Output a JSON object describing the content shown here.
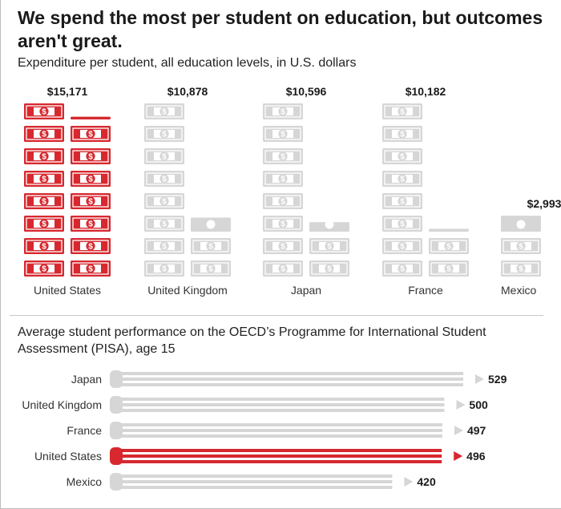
{
  "title": "We spend the most per student on education, but outcomes aren't great.",
  "chart_data": [
    {
      "type": "bar",
      "title": "Expenditure per student, all education levels, in U.S. dollars",
      "categories": [
        "United States",
        "United Kingdom",
        "Japan",
        "France",
        "Mexico"
      ],
      "values": [
        15171,
        10878,
        10596,
        10182,
        2993
      ],
      "value_labels": [
        "$15,171",
        "$10,878",
        "$10,596",
        "$10,182",
        "$2,993"
      ],
      "unit_per_icon": 1000,
      "highlight": "United States",
      "colors": {
        "highlight": "#d7282f",
        "other": "#d6d6d6"
      }
    },
    {
      "type": "bar",
      "orientation": "horizontal",
      "title": "Average student performance on the OECD’s Programme for International Student Assessment (PISA), age 15",
      "categories": [
        "Japan",
        "United Kingdom",
        "France",
        "United States",
        "Mexico"
      ],
      "values": [
        529,
        500,
        497,
        496,
        420
      ],
      "value_labels": [
        "529",
        "500",
        "497",
        "496",
        "420"
      ],
      "highlight": "United States",
      "colors": {
        "highlight": "#d7282f",
        "other": "#d6d6d6"
      }
    }
  ]
}
